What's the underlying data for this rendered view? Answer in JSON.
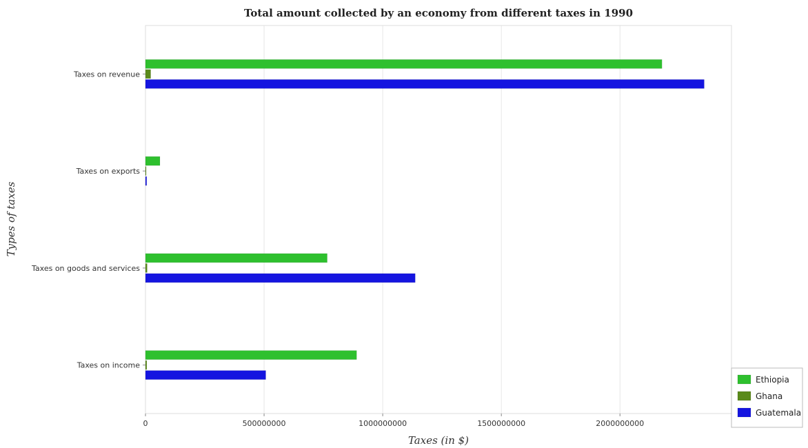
{
  "chart_data": {
    "type": "bar",
    "orientation": "horizontal",
    "title": "Total amount collected by an economy from different taxes in 1990",
    "xlabel": "Taxes (in $)",
    "ylabel": "Types of taxes",
    "categories": [
      "Taxes on revenue",
      "Taxes on exports",
      "Taxes on goods and services",
      "Taxes on income"
    ],
    "series": [
      {
        "name": "Ethiopia",
        "color": "#2ec02e",
        "values": [
          2177000000,
          61000000,
          766000000,
          890000000
        ]
      },
      {
        "name": "Ghana",
        "color": "#5a8a1a",
        "values": [
          22000000,
          1500000,
          7000000,
          5500000
        ]
      },
      {
        "name": "Guatemala",
        "color": "#1515e0",
        "values": [
          2355000000,
          5000000,
          1137000000,
          507000000
        ]
      }
    ],
    "xlim": [
      0,
      2470000000
    ],
    "xticks": [
      0,
      500000000,
      1000000000,
      1500000000,
      2000000000
    ],
    "xtick_labels": [
      "0",
      "500000000",
      "1000000000",
      "1500000000",
      "2000000000"
    ],
    "grid": true,
    "legend_position": "bottom-right"
  }
}
